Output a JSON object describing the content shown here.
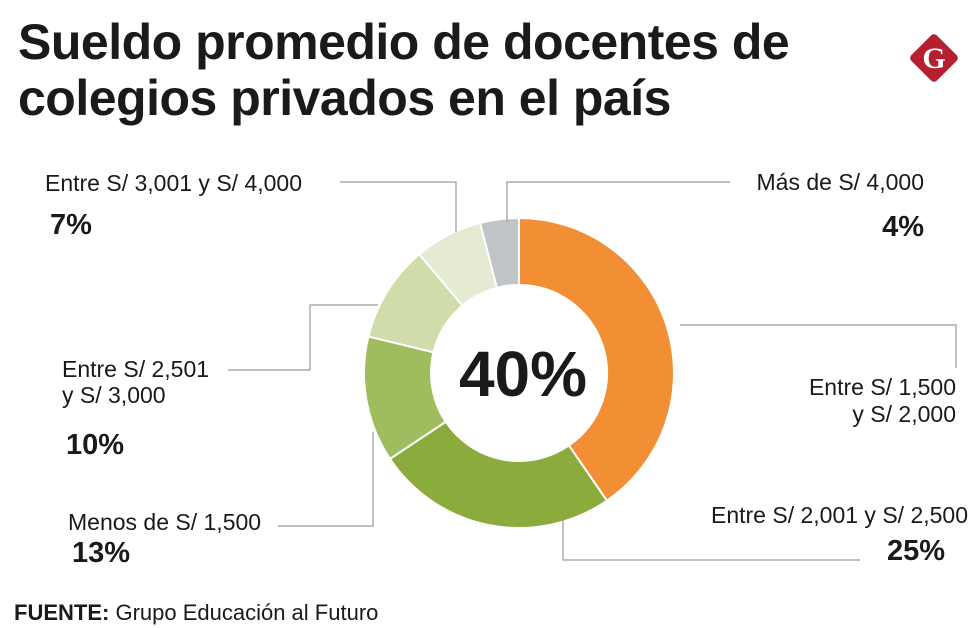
{
  "title": {
    "line1": "Sueldo promedio de docentes de",
    "line2": "colegios privados en el país"
  },
  "logo": {
    "letter": "G",
    "icon": "gestion-logo",
    "color": "#b4202f"
  },
  "center_label": "40%",
  "source": {
    "label": "FUENTE:",
    "text": "Grupo Educación al Futuro"
  },
  "chart_data": {
    "type": "pie",
    "variant": "donut",
    "title": "Sueldo promedio de docentes de colegios privados en el país",
    "unit": "%",
    "slices": [
      {
        "label": "Entre S/ 1,500 y S/ 2,000",
        "value": 40,
        "value_label": "40%",
        "color": "#f28f35"
      },
      {
        "label": "Entre S/ 2,001 y S/ 2,500",
        "value": 25,
        "value_label": "25%",
        "color": "#8bab3c"
      },
      {
        "label": "Menos de S/ 1,500",
        "value": 13,
        "value_label": "13%",
        "color": "#9fbc5e"
      },
      {
        "label": "Entre S/ 2,501 y S/ 3,000",
        "value": 10,
        "value_label": "10%",
        "color": "#d0ddab"
      },
      {
        "label": "Entre S/ 3,001 y S/ 4,000",
        "value": 7,
        "value_label": "7%",
        "color": "#e4ebd2"
      },
      {
        "label": "Más de S/ 4,000",
        "value": 4,
        "value_label": "4%",
        "color": "#c1c4c6"
      }
    ],
    "legend_labels": {
      "s0": [
        "Entre S/ 1,500",
        "y S/ 2,000"
      ],
      "s1": [
        "Entre S/ 2,001 y S/ 2,500"
      ],
      "s2": [
        "Menos de S/ 1,500"
      ],
      "s3": [
        "Entre S/ 2,501",
        "y  S/ 3,000"
      ],
      "s4": [
        "Entre S/ 3,001 y S/ 4,000"
      ],
      "s5": [
        "Más de S/ 4,000"
      ]
    }
  }
}
